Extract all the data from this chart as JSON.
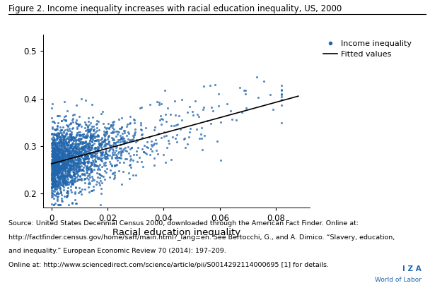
{
  "title": "Figure 2. Income inequality increases with racial education inequality, US, 2000",
  "xlabel": "Racial education inequality",
  "xlim": [
    -0.003,
    0.092
  ],
  "ylim": [
    0.17,
    0.535
  ],
  "xticks": [
    0,
    0.02,
    0.04,
    0.06,
    0.08
  ],
  "yticks": [
    0.2,
    0.3,
    0.4,
    0.5
  ],
  "dot_color": "#2166ac",
  "dot_size": 5,
  "dot_alpha": 0.75,
  "fit_color": "#000000",
  "fit_intercept": 0.262,
  "fit_slope": 1.625,
  "n_points": 2200,
  "random_seed": 7,
  "legend_dot_label": "Income inequality",
  "legend_line_label": "Fitted values",
  "source_line1": "Source: United States Decennial Census 2000, downloaded through the American Fact Finder. Online at:",
  "source_line2": "http://factfinder.census.gov/home/saff/main.html?_lang=en. See Bertocchi, G., and A. Dimico. “Slavery, education,",
  "source_line3": "and inequality.” European Economic Review 70 (2014): 197–209.",
  "source_line4": "Online at: http://www.sciencedirect.com/science/article/pii/S0014292114000695 [1] for details.",
  "iza_line1": "I Z A",
  "iza_line2": "World of Labor",
  "iza_color": "#2166ac",
  "background_color": "#ffffff",
  "fig_width": 6.08,
  "fig_height": 4.08,
  "dpi": 100
}
